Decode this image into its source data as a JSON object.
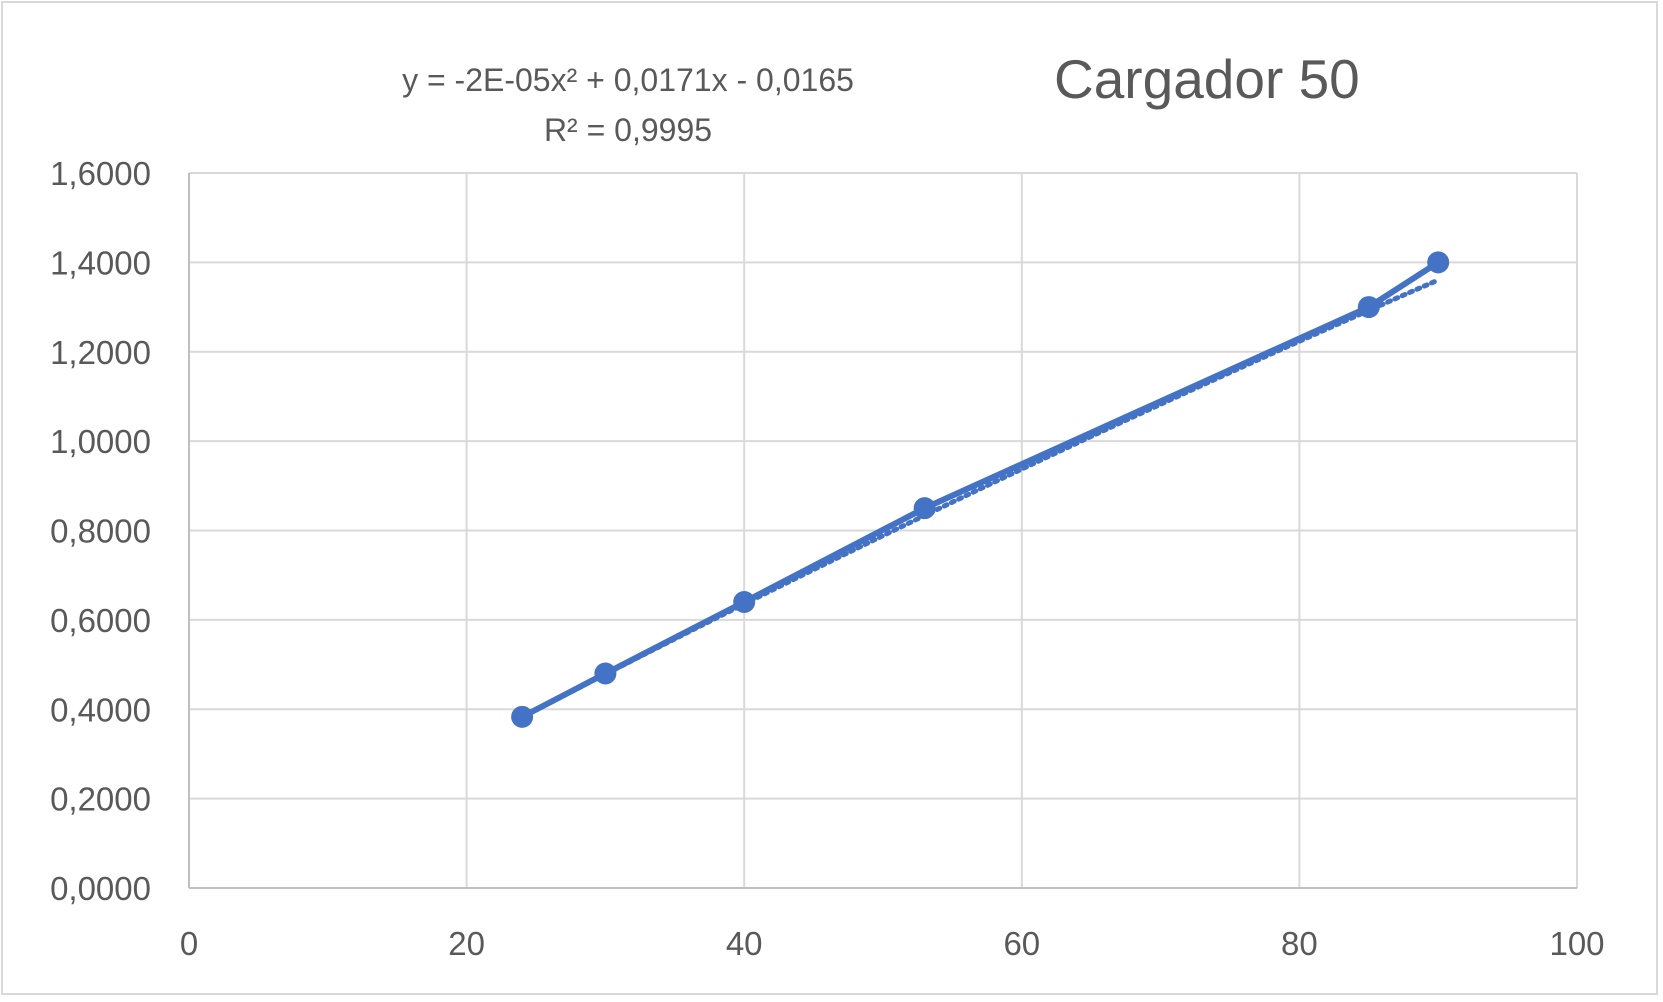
{
  "chart_data": {
    "type": "scatter",
    "title": "Cargador 50",
    "xlabel": "",
    "ylabel": "",
    "xlim": [
      0,
      100
    ],
    "ylim": [
      0,
      1.6
    ],
    "x_ticks": [
      "0",
      "20",
      "40",
      "60",
      "80",
      "100"
    ],
    "y_ticks": [
      "0,0000",
      "0,2000",
      "0,4000",
      "0,6000",
      "0,8000",
      "1,0000",
      "1,2000",
      "1,4000",
      "1,6000"
    ],
    "grid": true,
    "series": [
      {
        "x": [
          24,
          30,
          40,
          53,
          85,
          90
        ],
        "y": [
          0.383,
          0.48,
          0.64,
          0.85,
          1.3,
          1.4
        ],
        "color": "#4472c4",
        "line": "solid",
        "markers": true
      }
    ],
    "trendline": {
      "kind": "polynomial",
      "order": 2,
      "coefficients": [
        -2e-05,
        0.0171,
        -0.0165
      ],
      "equation": "y = -2E-05x² + 0,0171x - 0,0165",
      "r_squared": "R² = 0,9995",
      "color": "#4472c4",
      "line": "dotted"
    }
  }
}
